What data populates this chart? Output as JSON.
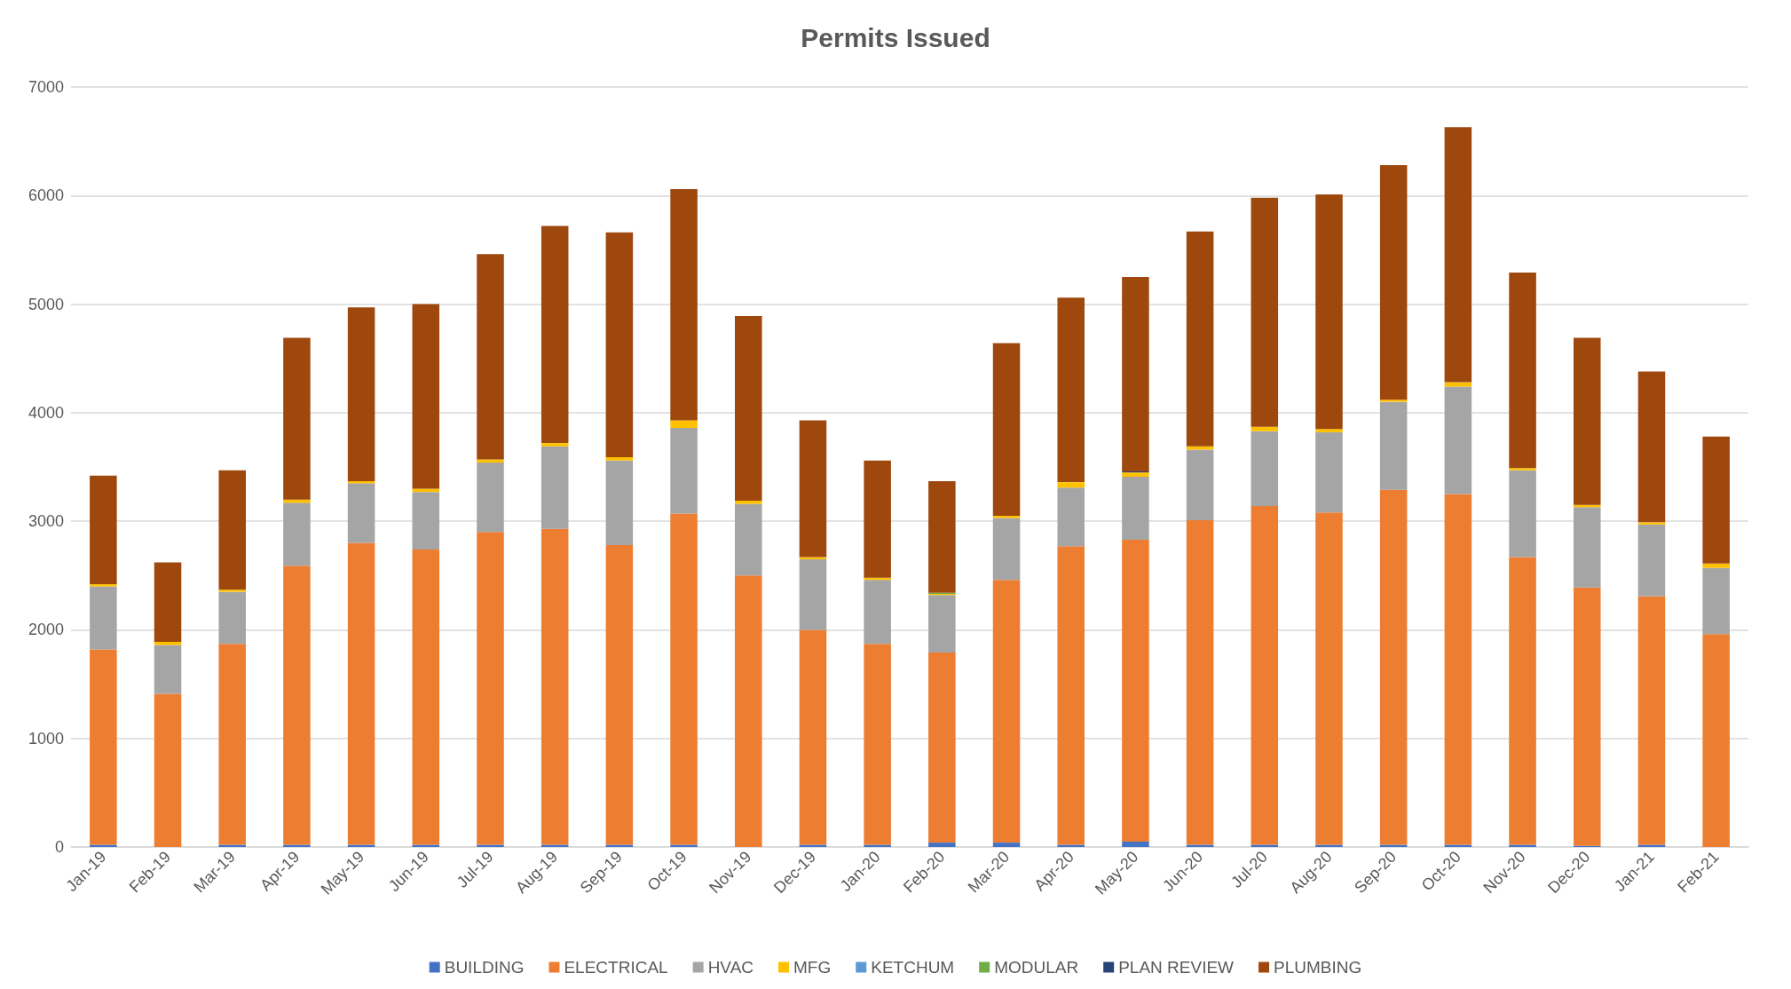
{
  "chart_data": {
    "type": "bar",
    "title": "Permits Issued",
    "stacked": true,
    "grid": "y",
    "legend": "bottom",
    "categories": [
      "Jan-19",
      "Feb-19",
      "Mar-19",
      "Apr-19",
      "May-19",
      "Jun-19",
      "Jul-19",
      "Aug-19",
      "Sep-19",
      "Oct-19",
      "Nov-19",
      "Dec-19",
      "Jan-20",
      "Feb-20",
      "Mar-20",
      "Apr-20",
      "May-20",
      "Jun-20",
      "Jul-20",
      "Aug-20",
      "Sep-20",
      "Oct-20",
      "Nov-20",
      "Dec-20",
      "Jan-21",
      "Feb-21"
    ],
    "ylim": [
      0,
      7000
    ],
    "yticks": [
      0,
      1000,
      2000,
      3000,
      4000,
      5000,
      6000,
      7000
    ],
    "series": [
      {
        "name": "BUILDING",
        "color": "#4472c4",
        "values": [
          20,
          0,
          20,
          20,
          20,
          20,
          20,
          20,
          20,
          20,
          0,
          20,
          20,
          40,
          40,
          20,
          50,
          20,
          20,
          20,
          20,
          20,
          20,
          10,
          20,
          0
        ]
      },
      {
        "name": "ELECTRICAL",
        "color": "#ed7d31",
        "values": [
          1800,
          1410,
          1850,
          2570,
          2780,
          2720,
          2880,
          2910,
          2760,
          3050,
          2500,
          1980,
          1850,
          1750,
          2420,
          2750,
          2780,
          2990,
          3120,
          3060,
          3270,
          3230,
          2650,
          2380,
          2290,
          1960
        ]
      },
      {
        "name": "HVAC",
        "color": "#a5a5a5",
        "values": [
          580,
          450,
          480,
          580,
          550,
          530,
          640,
          760,
          780,
          790,
          660,
          650,
          590,
          530,
          570,
          540,
          580,
          650,
          690,
          740,
          810,
          990,
          800,
          740,
          660,
          610
        ]
      },
      {
        "name": "MFG",
        "color": "#ffc000",
        "values": [
          20,
          30,
          20,
          30,
          20,
          30,
          30,
          30,
          30,
          70,
          30,
          20,
          20,
          10,
          20,
          50,
          40,
          30,
          40,
          30,
          20,
          40,
          20,
          20,
          20,
          40
        ]
      },
      {
        "name": "KETCHUM",
        "color": "#5b9bd5",
        "values": [
          0,
          0,
          0,
          0,
          0,
          0,
          0,
          0,
          0,
          0,
          0,
          0,
          0,
          0,
          0,
          0,
          0,
          0,
          0,
          0,
          0,
          0,
          0,
          0,
          0,
          0
        ]
      },
      {
        "name": "MODULAR",
        "color": "#70ad47",
        "values": [
          0,
          0,
          0,
          0,
          0,
          0,
          0,
          0,
          0,
          0,
          0,
          0,
          0,
          10,
          0,
          0,
          0,
          0,
          0,
          0,
          0,
          0,
          0,
          0,
          0,
          0
        ]
      },
      {
        "name": "PLAN REVIEW",
        "color": "#264478",
        "values": [
          0,
          0,
          0,
          0,
          0,
          0,
          0,
          0,
          0,
          0,
          0,
          0,
          0,
          0,
          0,
          0,
          10,
          0,
          0,
          0,
          0,
          0,
          0,
          0,
          0,
          0
        ]
      },
      {
        "name": "PLUMBING",
        "color": "#9e480e",
        "values": [
          1000,
          730,
          1100,
          1490,
          1600,
          1700,
          1890,
          2000,
          2070,
          2130,
          1700,
          1260,
          1080,
          1030,
          1590,
          1700,
          1790,
          1980,
          2110,
          2160,
          2160,
          2350,
          1800,
          1540,
          1390,
          1170
        ]
      }
    ]
  }
}
